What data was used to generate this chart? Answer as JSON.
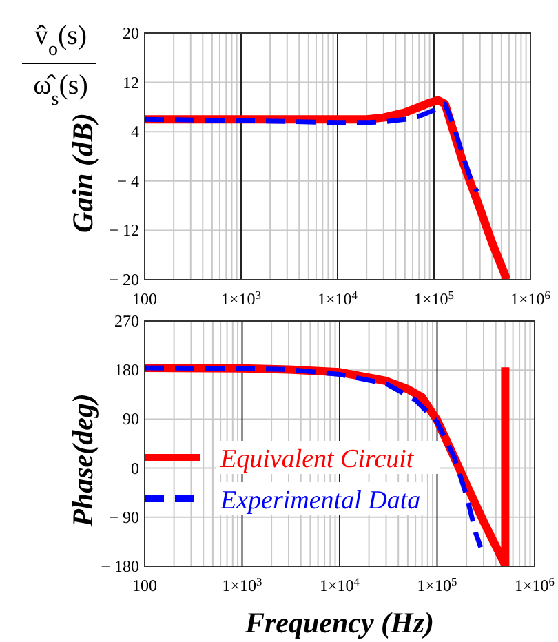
{
  "chart_data": [
    {
      "type": "line",
      "title": "v̂$_{o}$(s)",
      "subtitle": "ω̂$_{s}$(s)",
      "ylabel": "Gain (dB)",
      "log": "x",
      "grid": true,
      "legend": false,
      "xlim": [
        100,
        1000000
      ],
      "xticks": [
        100,
        {
          "value": 1000,
          "label": "1×10$^{3}$"
        },
        {
          "value": 10000,
          "label": "1×10$^{4}$"
        },
        {
          "value": 100000,
          "label": "1×10$^{5}$"
        },
        {
          "value": 1000000,
          "label": "1×10$^{6}$"
        }
      ],
      "ylim": [
        -20,
        20
      ],
      "yticks": [
        20,
        12,
        4,
        {
          "value": -4,
          "label": "− 4"
        },
        {
          "value": -12,
          "label": "− 12"
        },
        {
          "value": -20,
          "label": "− 20"
        }
      ],
      "series": [
        {
          "color": "#ff0000",
          "line_style": "solid",
          "x": [
            100,
            1000,
            10000,
            20000,
            30000,
            50000,
            70000,
            90000,
            110000,
            130000,
            200000,
            300000,
            400000,
            570000
          ],
          "values": [
            6,
            6,
            6,
            6,
            6.3,
            7.1,
            8,
            8.7,
            9.1,
            8.5,
            -1,
            -8.5,
            -14,
            -20
          ]
        },
        {
          "color": "#0000ff",
          "line_style": "dashed",
          "x": [
            100,
            1000,
            10000,
            20000,
            30000,
            50000,
            70000,
            100000,
            130000,
            160000,
            200000,
            250000,
            280000
          ],
          "values": [
            6,
            5.8,
            5.5,
            5.5,
            5.6,
            6,
            6.5,
            7.5,
            8.5,
            5,
            0,
            -4.5,
            -5.7
          ]
        }
      ]
    },
    {
      "type": "line",
      "ylabel": "Phase(deg)",
      "xlabel": "Frequency (Hz)",
      "log": "x",
      "grid": true,
      "legend": "left",
      "xlim": [
        100,
        1000000
      ],
      "xticks": [
        100,
        {
          "value": 1000,
          "label": "1×10$^{3}$"
        },
        {
          "value": 10000,
          "label": "1×10$^{4}$"
        },
        {
          "value": 100000,
          "label": "1×10$^{5}$"
        },
        {
          "value": 1000000,
          "label": "1×10$^{6}$"
        }
      ],
      "ylim": [
        -180,
        270
      ],
      "yticks": [
        270,
        180,
        90,
        0,
        {
          "value": -90,
          "label": "− 90"
        },
        {
          "value": -180,
          "label": "− 180"
        }
      ],
      "series": [
        {
          "name": "Equivalent Circuit",
          "color": "#ff0000",
          "line_style": "solid",
          "x": [
            100,
            1000,
            3000,
            10000,
            30000,
            50000,
            70000,
            100000,
            150000,
            200000,
            300000,
            500000,
            500000
          ],
          "values": [
            184,
            183,
            181,
            176,
            160,
            145,
            130,
            88,
            20,
            -30,
            -98,
            -178,
            185
          ]
        },
        {
          "name": "Experimental Data",
          "color": "#0000ff",
          "line_style": "dashed",
          "x": [
            100,
            1000,
            3000,
            10000,
            30000,
            60000,
            100000,
            150000,
            200000,
            250000,
            280000
          ],
          "values": [
            184,
            183,
            181,
            172,
            155,
            125,
            85,
            20,
            -50,
            -120,
            -145
          ]
        }
      ]
    }
  ]
}
